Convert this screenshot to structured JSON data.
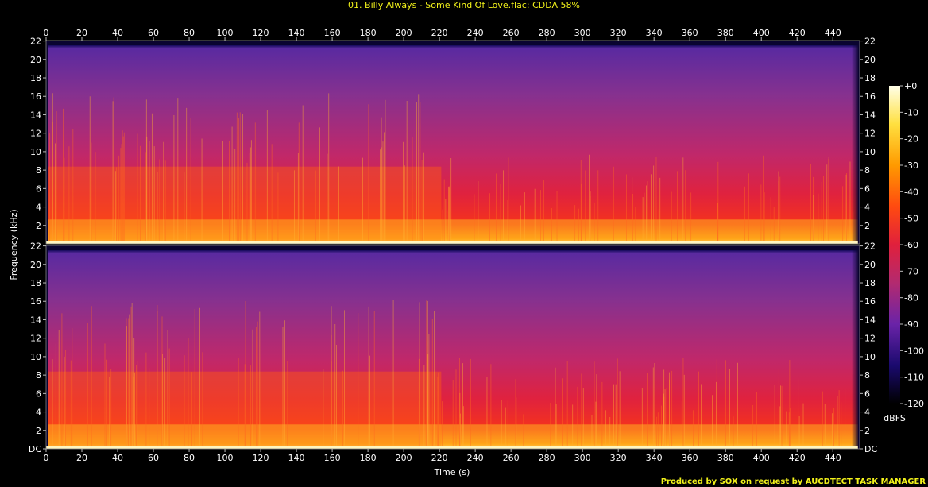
{
  "title": "01. Billy Always - Some Kind Of Love.flac: CDDA 58%",
  "credit": "Produced by SOX on request by AUCDTECT TASK MANAGER",
  "chart_data": {
    "type": "heatmap",
    "title": "01. Billy Always - Some Kind Of Love.flac: CDDA 58%",
    "xlabel": "Time (s)",
    "ylabel": "Frequency (kHz)",
    "colorbar_label": "dBFS",
    "xlim": [
      0,
      455
    ],
    "ylim": [
      0,
      22.05
    ],
    "x_ticks": [
      0,
      20,
      40,
      60,
      80,
      100,
      120,
      140,
      160,
      180,
      200,
      220,
      240,
      260,
      280,
      300,
      320,
      340,
      360,
      380,
      400,
      420,
      440
    ],
    "y_ticks": [
      "DC",
      "2",
      "4",
      "6",
      "8",
      "10",
      "12",
      "14",
      "16",
      "18",
      "20",
      "22"
    ],
    "colorbar_ticks": [
      "+0",
      "-10",
      "-20",
      "-30",
      "-40",
      "-50",
      "-60",
      "-70",
      "-80",
      "-90",
      "-100",
      "-110",
      "-120"
    ],
    "colorbar_range_dbfs": [
      -120,
      0
    ],
    "channels": [
      "channel-1",
      "channel-2"
    ],
    "signal_end_s": 454,
    "change_point_s": 221,
    "colormap": [
      "#000000",
      "#1a0a6e",
      "#6a23a8",
      "#b32a6f",
      "#e0203c",
      "#ff4a10",
      "#ff9a00",
      "#ffe040",
      "#ffffe8"
    ],
    "accent_text_color": "#f2f21a"
  }
}
